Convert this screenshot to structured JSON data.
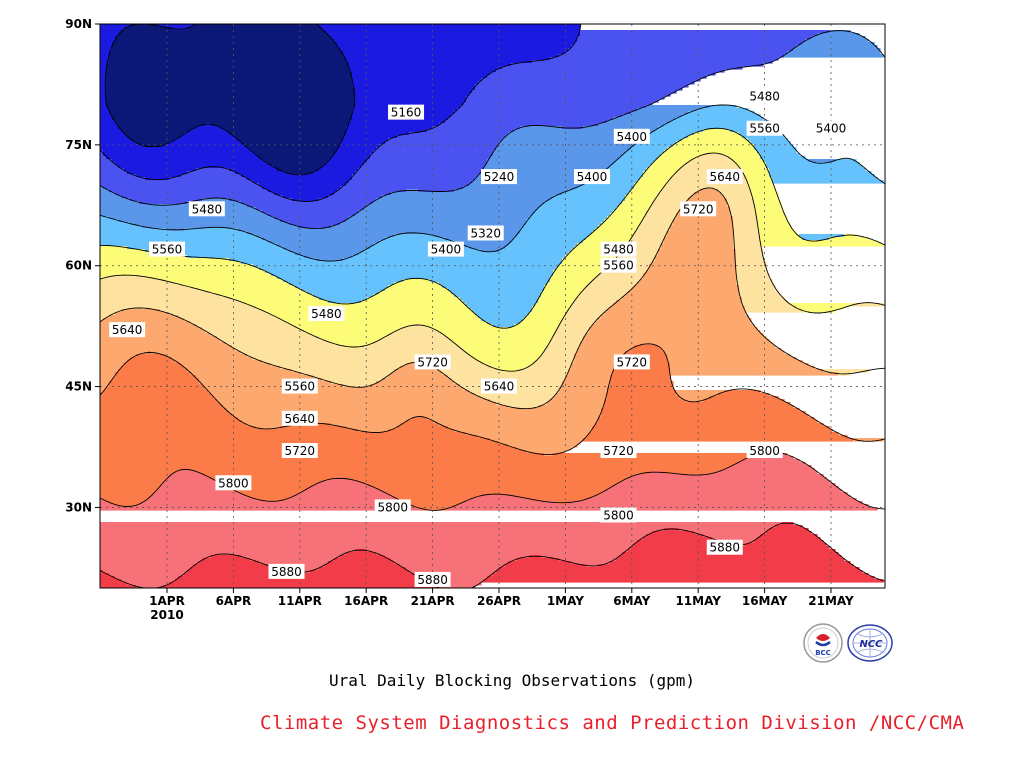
{
  "chart_data": {
    "type": "heatmap",
    "title": "Ural Daily Blocking Observations (gpm)",
    "xlabel": "",
    "ylabel": "",
    "x_ticks": [
      "1APR",
      "6APR",
      "11APR",
      "16APR",
      "21APR",
      "26APR",
      "1MAY",
      "6MAY",
      "11MAY",
      "16MAY",
      "21MAY"
    ],
    "x_year_label": "2010",
    "x_range": [
      "2010-03-27",
      "2010-05-26"
    ],
    "y_ticks": [
      "30N",
      "45N",
      "60N",
      "75N",
      "90N"
    ],
    "y_range": [
      20,
      90
    ],
    "levels": [
      5160,
      5240,
      5320,
      5400,
      5480,
      5560,
      5640,
      5720,
      5800,
      5880
    ],
    "colors": [
      "#0c1878",
      "#1a1ae0",
      "#4a52f0",
      "#5a96ea",
      "#66c2fc",
      "#fcfc78",
      "#fde2a0",
      "#fca86e",
      "#fb7c48",
      "#f77278",
      "#f23c4a"
    ],
    "grid": true,
    "contour_labels": [
      {
        "value": "5160",
        "date": "2010-04-19",
        "lat": 79
      },
      {
        "value": "5240",
        "date": "2010-04-26",
        "lat": 71
      },
      {
        "value": "5320",
        "date": "2010-04-25",
        "lat": 64
      },
      {
        "value": "5400",
        "date": "2010-04-22",
        "lat": 62
      },
      {
        "value": "5400",
        "date": "2010-05-03",
        "lat": 71
      },
      {
        "value": "5400",
        "date": "2010-05-06",
        "lat": 76
      },
      {
        "value": "5400",
        "date": "2010-05-21",
        "lat": 77
      },
      {
        "value": "5480",
        "date": "2010-04-04",
        "lat": 67
      },
      {
        "value": "5480",
        "date": "2010-04-13",
        "lat": 54
      },
      {
        "value": "5480",
        "date": "2010-05-05",
        "lat": 62
      },
      {
        "value": "5480",
        "date": "2010-05-16",
        "lat": 81
      },
      {
        "value": "5560",
        "date": "2010-04-01",
        "lat": 62
      },
      {
        "value": "5560",
        "date": "2010-04-11",
        "lat": 45
      },
      {
        "value": "5560",
        "date": "2010-05-05",
        "lat": 60
      },
      {
        "value": "5560",
        "date": "2010-05-16",
        "lat": 77
      },
      {
        "value": "5640",
        "date": "2010-03-29",
        "lat": 52
      },
      {
        "value": "5640",
        "date": "2010-04-11",
        "lat": 41
      },
      {
        "value": "5640",
        "date": "2010-04-26",
        "lat": 45
      },
      {
        "value": "5640",
        "date": "2010-05-13",
        "lat": 71
      },
      {
        "value": "5720",
        "date": "2010-04-11",
        "lat": 37
      },
      {
        "value": "5720",
        "date": "2010-04-21",
        "lat": 48
      },
      {
        "value": "5720",
        "date": "2010-05-06",
        "lat": 48
      },
      {
        "value": "5720",
        "date": "2010-05-05",
        "lat": 37
      },
      {
        "value": "5720",
        "date": "2010-05-11",
        "lat": 67
      },
      {
        "value": "5800",
        "date": "2010-04-06",
        "lat": 33
      },
      {
        "value": "5800",
        "date": "2010-04-18",
        "lat": 30
      },
      {
        "value": "5800",
        "date": "2010-05-05",
        "lat": 29
      },
      {
        "value": "5800",
        "date": "2010-05-16",
        "lat": 37
      },
      {
        "value": "5880",
        "date": "2010-04-10",
        "lat": 22
      },
      {
        "value": "5880",
        "date": "2010-04-21",
        "lat": 21
      },
      {
        "value": "5880",
        "date": "2010-05-13",
        "lat": 25
      }
    ]
  },
  "credit": "Climate System Diagnostics and Prediction Division /NCC/CMA",
  "credit_color": "#e8202c",
  "logos": [
    "BCC",
    "NCC"
  ]
}
